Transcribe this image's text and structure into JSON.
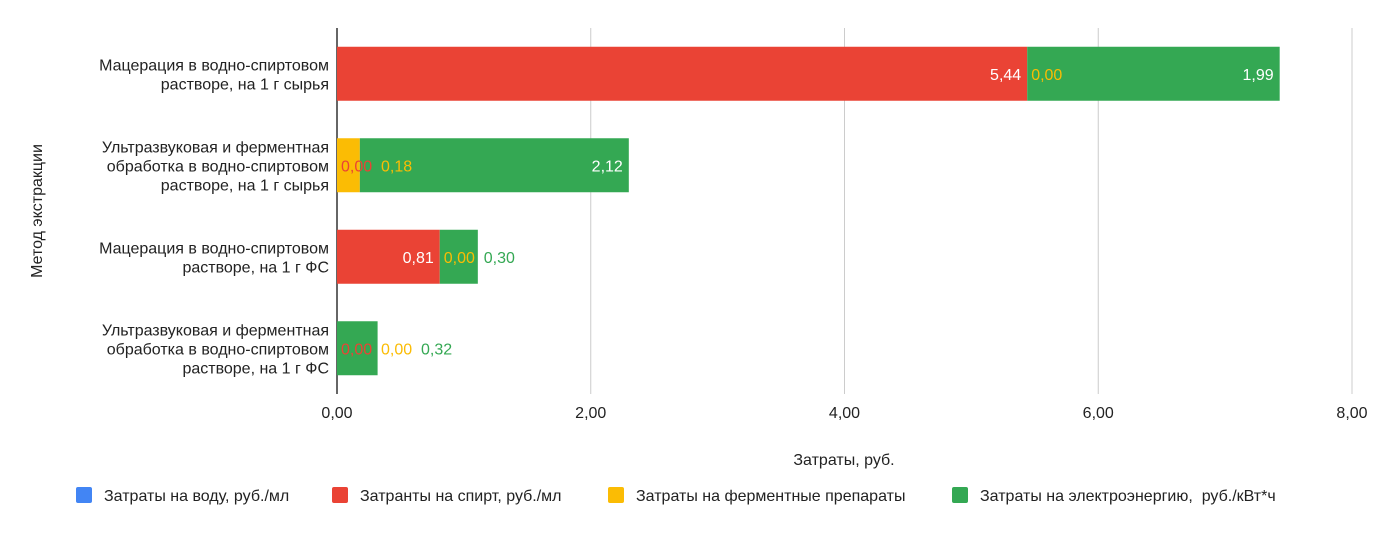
{
  "chart_data": {
    "type": "bar",
    "orientation": "horizontal",
    "stacked": true,
    "title": "",
    "xlabel": "Затраты, руб.",
    "ylabel": "Метод экстракции",
    "xlim": [
      0,
      8
    ],
    "xticks": [
      "0,00",
      "2,00",
      "4,00",
      "6,00",
      "8,00"
    ],
    "grid": true,
    "legend_position": "bottom",
    "categories": [
      [
        "Мацерация в водно-спиртовом",
        "растворе, на 1 г сырья"
      ],
      [
        "Ультразвуковая и ферментная",
        "обработка в водно-спиртовом",
        "растворе, на 1 г сырья"
      ],
      [
        "Мацерация в водно-спиртовом",
        "растворе, на 1 г ФС"
      ],
      [
        "Ультразвуковая и ферментная",
        "обработка в водно-спиртовом",
        "растворе, на 1 г ФС"
      ]
    ],
    "series": [
      {
        "name": "Затраты на воду, руб./мл",
        "color": "#4285F4",
        "values": [
          0,
          0,
          0,
          0
        ],
        "labels": [
          "",
          "",
          "",
          ""
        ]
      },
      {
        "name": "Затранты на спирт, руб./мл",
        "color": "#EA4335",
        "values": [
          5.44,
          0,
          0.81,
          0
        ],
        "labels": [
          "5,44",
          "0,00",
          "0,81",
          "0,00"
        ]
      },
      {
        "name": "Затраты на ферментные препараты",
        "color": "#FBBC04",
        "values": [
          0,
          0.18,
          0,
          0
        ],
        "labels": [
          "0,00",
          "0,18",
          "0,00",
          "0,00"
        ]
      },
      {
        "name": "Затраты на электроэнергию,  руб./кВт*ч",
        "color": "#34A853",
        "values": [
          1.99,
          2.12,
          0.3,
          0.32
        ],
        "labels": [
          "1,99",
          "2,12",
          "0,30",
          "0,32"
        ]
      }
    ]
  }
}
